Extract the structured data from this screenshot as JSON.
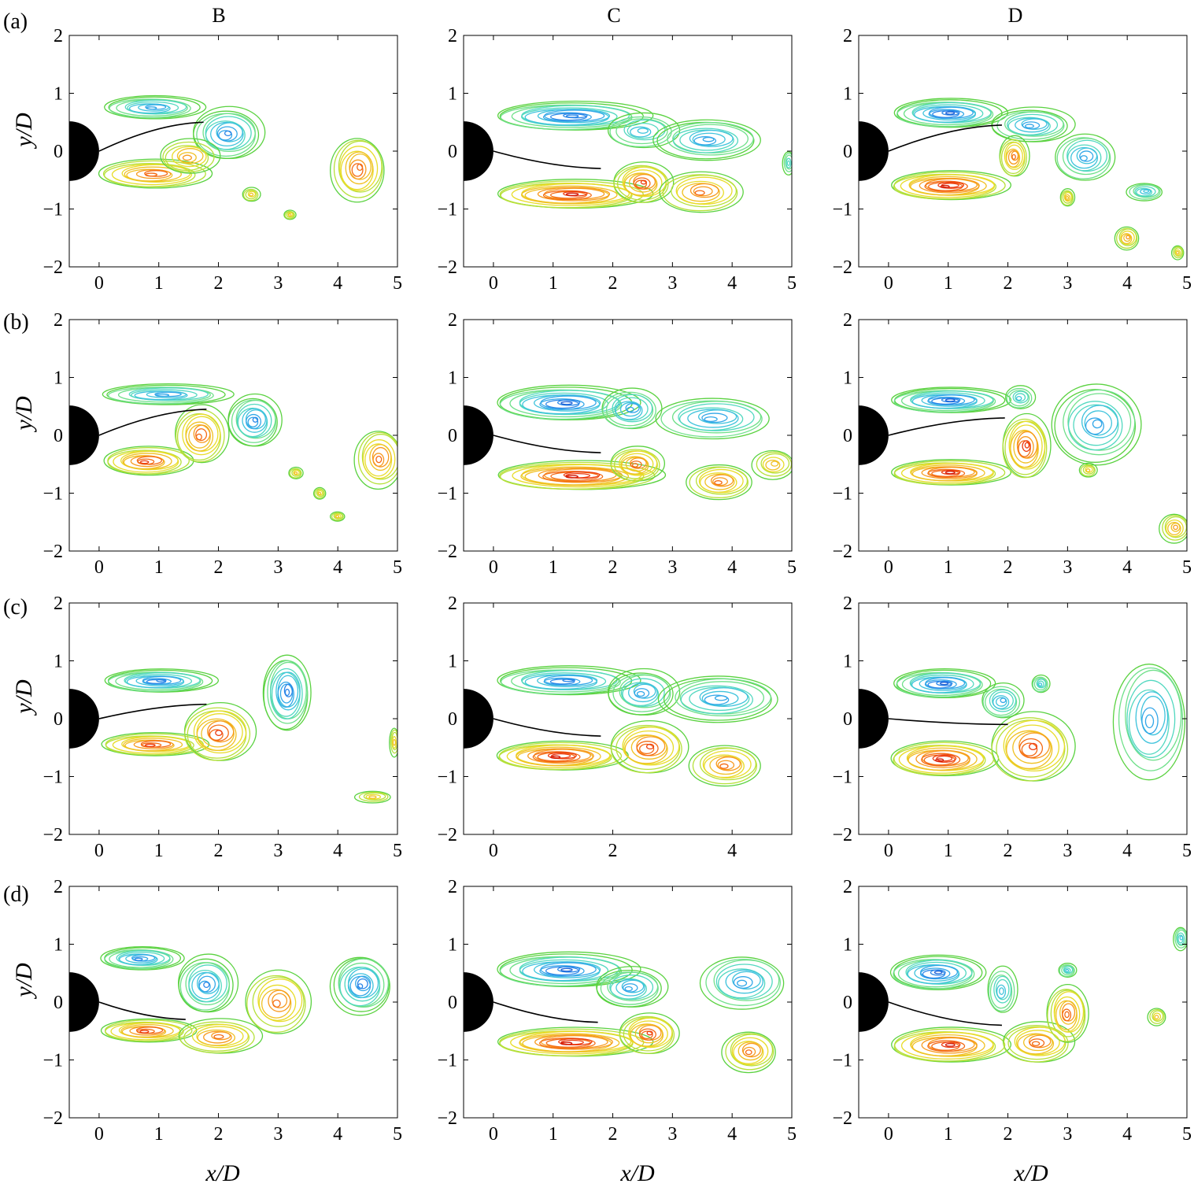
{
  "figure": {
    "column_titles": [
      "B",
      "C",
      "D"
    ],
    "row_labels": [
      "(a)",
      "(b)",
      "(c)",
      "(d)"
    ],
    "x_axis_label": "x/D",
    "y_axis_label": "y/D"
  },
  "colors": {
    "negative_vorticity": [
      "#1b5fd6",
      "#2a86e8",
      "#33a7e8",
      "#3fc3dc",
      "#52d8c0",
      "#6fe08a",
      "#5ad240"
    ],
    "positive_vorticity": [
      "#d21a0c",
      "#ec3b10",
      "#f46a14",
      "#f79a1e",
      "#f0c023",
      "#e8dc2a",
      "#b6e03a",
      "#5ad240"
    ],
    "body": "#000000"
  },
  "chart_data": [
    {
      "type": "contour",
      "panel": "(a)",
      "column": "B",
      "xlim": [
        -0.5,
        5
      ],
      "ylim": [
        -2,
        2
      ],
      "x_ticks": [
        0,
        1,
        2,
        3,
        4,
        5
      ],
      "y_ticks": [
        -2,
        -1,
        0,
        1,
        2
      ],
      "plate_tip": [
        1.75,
        0.5
      ],
      "regions": [
        {
          "sign": "negative",
          "cx": 0.9,
          "cy": 0.75,
          "rx": 0.85,
          "ry": 0.2,
          "peak": 0.6
        },
        {
          "sign": "negative",
          "cx": 2.15,
          "cy": 0.3,
          "rx": 0.6,
          "ry": 0.45,
          "peak": 0.7
        },
        {
          "sign": "positive",
          "cx": 0.9,
          "cy": -0.4,
          "rx": 0.95,
          "ry": 0.25,
          "peak": 0.6
        },
        {
          "sign": "positive",
          "cx": 1.5,
          "cy": -0.1,
          "rx": 0.5,
          "ry": 0.3,
          "peak": 0.3
        },
        {
          "sign": "positive",
          "cx": 4.35,
          "cy": -0.3,
          "rx": 0.45,
          "ry": 0.55,
          "peak": 0.6
        },
        {
          "sign": "positive",
          "cx": 2.55,
          "cy": -0.75,
          "rx": 0.15,
          "ry": 0.12,
          "peak": 0.1
        },
        {
          "sign": "positive",
          "cx": 3.2,
          "cy": -1.1,
          "rx": 0.1,
          "ry": 0.08,
          "peak": 0.1
        }
      ]
    },
    {
      "type": "contour",
      "panel": "(a)",
      "column": "C",
      "xlim": [
        -0.5,
        5
      ],
      "ylim": [
        -2,
        2
      ],
      "x_ticks": [
        0,
        1,
        2,
        3,
        4,
        5
      ],
      "y_ticks": [
        -2,
        -1,
        0,
        1,
        2
      ],
      "plate_tip": [
        1.8,
        -0.3
      ],
      "regions": [
        {
          "sign": "negative",
          "cx": 1.3,
          "cy": 0.6,
          "rx": 1.3,
          "ry": 0.25,
          "peak": 0.85
        },
        {
          "sign": "negative",
          "cx": 2.5,
          "cy": 0.35,
          "rx": 0.6,
          "ry": 0.3,
          "peak": 0.3
        },
        {
          "sign": "negative",
          "cx": 3.6,
          "cy": 0.2,
          "rx": 0.9,
          "ry": 0.35,
          "peak": 0.6
        },
        {
          "sign": "positive",
          "cx": 1.3,
          "cy": -0.75,
          "rx": 1.3,
          "ry": 0.25,
          "peak": 0.9
        },
        {
          "sign": "positive",
          "cx": 2.5,
          "cy": -0.55,
          "rx": 0.5,
          "ry": 0.35,
          "peak": 0.7
        },
        {
          "sign": "positive",
          "cx": 3.5,
          "cy": -0.7,
          "rx": 0.7,
          "ry": 0.35,
          "peak": 0.5
        },
        {
          "sign": "negative",
          "cx": 4.95,
          "cy": -0.2,
          "rx": 0.1,
          "ry": 0.2,
          "peak": 0.1
        }
      ]
    },
    {
      "type": "contour",
      "panel": "(a)",
      "column": "D",
      "xlim": [
        -0.5,
        5
      ],
      "ylim": [
        -2,
        2
      ],
      "x_ticks": [
        0,
        1,
        2,
        3,
        4,
        5
      ],
      "y_ticks": [
        -2,
        -1,
        0,
        1,
        2
      ],
      "plate_tip": [
        1.9,
        0.45
      ],
      "regions": [
        {
          "sign": "negative",
          "cx": 1.0,
          "cy": 0.65,
          "rx": 0.95,
          "ry": 0.25,
          "peak": 0.9
        },
        {
          "sign": "negative",
          "cx": 2.4,
          "cy": 0.45,
          "rx": 0.7,
          "ry": 0.3,
          "peak": 0.6
        },
        {
          "sign": "negative",
          "cx": 3.3,
          "cy": -0.1,
          "rx": 0.5,
          "ry": 0.4,
          "peak": 0.5
        },
        {
          "sign": "negative",
          "cx": 4.3,
          "cy": -0.7,
          "rx": 0.3,
          "ry": 0.15,
          "peak": 0.3
        },
        {
          "sign": "positive",
          "cx": 1.0,
          "cy": -0.6,
          "rx": 1.0,
          "ry": 0.25,
          "peak": 1.0
        },
        {
          "sign": "positive",
          "cx": 2.1,
          "cy": -0.1,
          "rx": 0.25,
          "ry": 0.35,
          "peak": 0.5
        },
        {
          "sign": "positive",
          "cx": 3.0,
          "cy": -0.8,
          "rx": 0.12,
          "ry": 0.15,
          "peak": 0.2
        },
        {
          "sign": "positive",
          "cx": 4.0,
          "cy": -1.5,
          "rx": 0.2,
          "ry": 0.2,
          "peak": 0.3
        },
        {
          "sign": "positive",
          "cx": 4.85,
          "cy": -1.75,
          "rx": 0.1,
          "ry": 0.12,
          "peak": 0.1
        }
      ]
    },
    {
      "type": "contour",
      "panel": "(b)",
      "column": "B",
      "xlim": [
        -0.5,
        5
      ],
      "ylim": [
        -2,
        2
      ],
      "x_ticks": [
        0,
        1,
        2,
        3,
        4,
        5
      ],
      "y_ticks": [
        -2,
        -1,
        0,
        1,
        2
      ],
      "plate_tip": [
        1.8,
        0.45
      ],
      "regions": [
        {
          "sign": "negative",
          "cx": 1.1,
          "cy": 0.7,
          "rx": 1.1,
          "ry": 0.18,
          "peak": 0.6
        },
        {
          "sign": "negative",
          "cx": 2.6,
          "cy": 0.25,
          "rx": 0.45,
          "ry": 0.45,
          "peak": 0.7
        },
        {
          "sign": "positive",
          "cx": 0.8,
          "cy": -0.45,
          "rx": 0.75,
          "ry": 0.25,
          "peak": 0.7
        },
        {
          "sign": "positive",
          "cx": 1.7,
          "cy": 0.0,
          "rx": 0.45,
          "ry": 0.5,
          "peak": 0.6
        },
        {
          "sign": "positive",
          "cx": 4.7,
          "cy": -0.4,
          "rx": 0.4,
          "ry": 0.5,
          "peak": 0.5
        },
        {
          "sign": "positive",
          "cx": 3.3,
          "cy": -0.65,
          "rx": 0.12,
          "ry": 0.1,
          "peak": 0.1
        },
        {
          "sign": "positive",
          "cx": 3.7,
          "cy": -1.0,
          "rx": 0.1,
          "ry": 0.1,
          "peak": 0.1
        },
        {
          "sign": "positive",
          "cx": 4.0,
          "cy": -1.4,
          "rx": 0.12,
          "ry": 0.08,
          "peak": 0.1
        }
      ]
    },
    {
      "type": "contour",
      "panel": "(b)",
      "column": "C",
      "xlim": [
        -0.5,
        5
      ],
      "ylim": [
        -2,
        2
      ],
      "x_ticks": [
        0,
        1,
        2,
        3,
        4,
        5
      ],
      "y_ticks": [
        -2,
        -1,
        0,
        1,
        2
      ],
      "plate_tip": [
        1.8,
        -0.3
      ],
      "regions": [
        {
          "sign": "negative",
          "cx": 1.2,
          "cy": 0.55,
          "rx": 1.2,
          "ry": 0.3,
          "peak": 0.9
        },
        {
          "sign": "negative",
          "cx": 2.3,
          "cy": 0.45,
          "rx": 0.5,
          "ry": 0.35,
          "peak": 0.5
        },
        {
          "sign": "negative",
          "cx": 3.7,
          "cy": 0.3,
          "rx": 0.95,
          "ry": 0.35,
          "peak": 0.5
        },
        {
          "sign": "positive",
          "cx": 1.4,
          "cy": -0.7,
          "rx": 1.4,
          "ry": 0.25,
          "peak": 1.0
        },
        {
          "sign": "positive",
          "cx": 2.4,
          "cy": -0.5,
          "rx": 0.45,
          "ry": 0.3,
          "peak": 0.6
        },
        {
          "sign": "positive",
          "cx": 3.8,
          "cy": -0.8,
          "rx": 0.55,
          "ry": 0.3,
          "peak": 0.5
        },
        {
          "sign": "positive",
          "cx": 4.7,
          "cy": -0.5,
          "rx": 0.35,
          "ry": 0.25,
          "peak": 0.2
        }
      ]
    },
    {
      "type": "contour",
      "panel": "(b)",
      "column": "D",
      "xlim": [
        -0.5,
        5
      ],
      "ylim": [
        -2,
        2
      ],
      "x_ticks": [
        0,
        1,
        2,
        3,
        4,
        5
      ],
      "y_ticks": [
        -2,
        -1,
        0,
        1,
        2
      ],
      "plate_tip": [
        1.95,
        0.3
      ],
      "regions": [
        {
          "sign": "negative",
          "cx": 1.0,
          "cy": 0.6,
          "rx": 1.0,
          "ry": 0.22,
          "peak": 0.9
        },
        {
          "sign": "negative",
          "cx": 2.2,
          "cy": 0.65,
          "rx": 0.25,
          "ry": 0.2,
          "peak": 0.2
        },
        {
          "sign": "negative",
          "cx": 3.5,
          "cy": 0.2,
          "rx": 0.75,
          "ry": 0.7,
          "peak": 0.6
        },
        {
          "sign": "positive",
          "cx": 1.0,
          "cy": -0.65,
          "rx": 1.0,
          "ry": 0.22,
          "peak": 0.9
        },
        {
          "sign": "positive",
          "cx": 2.3,
          "cy": -0.2,
          "rx": 0.4,
          "ry": 0.55,
          "peak": 0.8
        },
        {
          "sign": "positive",
          "cx": 3.35,
          "cy": -0.6,
          "rx": 0.15,
          "ry": 0.12,
          "peak": 0.1
        },
        {
          "sign": "positive",
          "cx": 4.8,
          "cy": -1.6,
          "rx": 0.25,
          "ry": 0.25,
          "peak": 0.3
        }
      ]
    },
    {
      "type": "contour",
      "panel": "(c)",
      "column": "B",
      "xlim": [
        -0.5,
        5
      ],
      "ylim": [
        -2,
        2
      ],
      "x_ticks": [
        0,
        1,
        2,
        3,
        4,
        5
      ],
      "y_ticks": [
        -2,
        -1,
        0,
        1,
        2
      ],
      "plate_tip": [
        1.8,
        0.25
      ],
      "regions": [
        {
          "sign": "negative",
          "cx": 1.0,
          "cy": 0.65,
          "rx": 0.95,
          "ry": 0.2,
          "peak": 0.8
        },
        {
          "sign": "negative",
          "cx": 3.15,
          "cy": 0.45,
          "rx": 0.4,
          "ry": 0.65,
          "peak": 0.8
        },
        {
          "sign": "positive",
          "cx": 0.9,
          "cy": -0.45,
          "rx": 0.9,
          "ry": 0.2,
          "peak": 0.7
        },
        {
          "sign": "positive",
          "cx": 2.0,
          "cy": -0.25,
          "rx": 0.6,
          "ry": 0.5,
          "peak": 0.7
        },
        {
          "sign": "positive",
          "cx": 4.6,
          "cy": -1.35,
          "rx": 0.3,
          "ry": 0.1,
          "peak": 0.1
        },
        {
          "sign": "positive",
          "cx": 4.95,
          "cy": -0.4,
          "rx": 0.08,
          "ry": 0.25,
          "peak": 0.1
        }
      ]
    },
    {
      "type": "contour",
      "panel": "(c)",
      "column": "C",
      "xlim": [
        -0.5,
        5
      ],
      "ylim": [
        -2,
        2
      ],
      "x_ticks": [
        0,
        2,
        4
      ],
      "y_ticks": [
        -2,
        -1,
        0,
        1,
        2
      ],
      "plate_tip": [
        1.8,
        -0.3
      ],
      "regions": [
        {
          "sign": "negative",
          "cx": 1.2,
          "cy": 0.65,
          "rx": 1.2,
          "ry": 0.25,
          "peak": 0.8
        },
        {
          "sign": "negative",
          "cx": 2.5,
          "cy": 0.45,
          "rx": 0.6,
          "ry": 0.4,
          "peak": 0.6
        },
        {
          "sign": "negative",
          "cx": 3.8,
          "cy": 0.35,
          "rx": 1.0,
          "ry": 0.4,
          "peak": 0.6
        },
        {
          "sign": "positive",
          "cx": 1.1,
          "cy": -0.65,
          "rx": 1.1,
          "ry": 0.25,
          "peak": 1.0
        },
        {
          "sign": "positive",
          "cx": 2.6,
          "cy": -0.5,
          "rx": 0.65,
          "ry": 0.45,
          "peak": 0.7
        },
        {
          "sign": "positive",
          "cx": 3.9,
          "cy": -0.8,
          "rx": 0.6,
          "ry": 0.35,
          "peak": 0.5
        }
      ]
    },
    {
      "type": "contour",
      "panel": "(c)",
      "column": "D",
      "xlim": [
        -0.5,
        5
      ],
      "ylim": [
        -2,
        2
      ],
      "x_ticks": [
        0,
        1,
        2,
        3,
        4,
        5
      ],
      "y_ticks": [
        -2,
        -1,
        0,
        1,
        2
      ],
      "plate_tip": [
        2.0,
        -0.1
      ],
      "regions": [
        {
          "sign": "negative",
          "cx": 0.9,
          "cy": 0.6,
          "rx": 0.85,
          "ry": 0.25,
          "peak": 0.9
        },
        {
          "sign": "negative",
          "cx": 1.9,
          "cy": 0.3,
          "rx": 0.35,
          "ry": 0.3,
          "peak": 0.4
        },
        {
          "sign": "negative",
          "cx": 2.55,
          "cy": 0.6,
          "rx": 0.15,
          "ry": 0.15,
          "peak": 0.2
        },
        {
          "sign": "negative",
          "cx": 4.4,
          "cy": 0.0,
          "rx": 0.6,
          "ry": 1.0,
          "peak": 0.5
        },
        {
          "sign": "positive",
          "cx": 0.9,
          "cy": -0.7,
          "rx": 0.9,
          "ry": 0.3,
          "peak": 1.0
        },
        {
          "sign": "positive",
          "cx": 2.4,
          "cy": -0.5,
          "rx": 0.7,
          "ry": 0.6,
          "peak": 0.7
        }
      ]
    },
    {
      "type": "contour",
      "panel": "(d)",
      "column": "B",
      "xlim": [
        -0.5,
        5
      ],
      "ylim": [
        -2,
        2
      ],
      "x_ticks": [
        0,
        1,
        2,
        3,
        4,
        5
      ],
      "y_ticks": [
        -2,
        -1,
        0,
        1,
        2
      ],
      "plate_tip": [
        1.45,
        -0.3
      ],
      "regions": [
        {
          "sign": "negative",
          "cx": 0.7,
          "cy": 0.75,
          "rx": 0.7,
          "ry": 0.2,
          "peak": 0.7
        },
        {
          "sign": "negative",
          "cx": 1.8,
          "cy": 0.3,
          "rx": 0.5,
          "ry": 0.5,
          "peak": 0.7
        },
        {
          "sign": "negative",
          "cx": 4.4,
          "cy": 0.3,
          "rx": 0.5,
          "ry": 0.5,
          "peak": 0.8
        },
        {
          "sign": "positive",
          "cx": 0.8,
          "cy": -0.5,
          "rx": 0.8,
          "ry": 0.2,
          "peak": 0.7
        },
        {
          "sign": "positive",
          "cx": 2.0,
          "cy": -0.6,
          "rx": 0.7,
          "ry": 0.3,
          "peak": 0.5
        },
        {
          "sign": "positive",
          "cx": 3.0,
          "cy": 0.0,
          "rx": 0.55,
          "ry": 0.55,
          "peak": 0.5
        }
      ]
    },
    {
      "type": "contour",
      "panel": "(d)",
      "column": "C",
      "xlim": [
        -0.5,
        5
      ],
      "ylim": [
        -2,
        2
      ],
      "x_ticks": [
        0,
        1,
        2,
        3,
        4,
        5
      ],
      "y_ticks": [
        -2,
        -1,
        0,
        1,
        2
      ],
      "plate_tip": [
        1.75,
        -0.35
      ],
      "regions": [
        {
          "sign": "negative",
          "cx": 1.2,
          "cy": 0.55,
          "rx": 1.2,
          "ry": 0.3,
          "peak": 0.9
        },
        {
          "sign": "negative",
          "cx": 2.3,
          "cy": 0.25,
          "rx": 0.6,
          "ry": 0.35,
          "peak": 0.6
        },
        {
          "sign": "negative",
          "cx": 4.2,
          "cy": 0.35,
          "rx": 0.7,
          "ry": 0.45,
          "peak": 0.5
        },
        {
          "sign": "positive",
          "cx": 1.3,
          "cy": -0.7,
          "rx": 1.3,
          "ry": 0.25,
          "peak": 1.0
        },
        {
          "sign": "positive",
          "cx": 2.6,
          "cy": -0.55,
          "rx": 0.5,
          "ry": 0.35,
          "peak": 0.7
        },
        {
          "sign": "positive",
          "cx": 4.3,
          "cy": -0.85,
          "rx": 0.45,
          "ry": 0.35,
          "peak": 0.5
        }
      ]
    },
    {
      "type": "contour",
      "panel": "(d)",
      "column": "D",
      "xlim": [
        -0.5,
        5
      ],
      "ylim": [
        -2,
        2
      ],
      "x_ticks": [
        0,
        1,
        2,
        3,
        4,
        5
      ],
      "y_ticks": [
        -2,
        -1,
        0,
        1,
        2
      ],
      "plate_tip": [
        1.9,
        -0.4
      ],
      "regions": [
        {
          "sign": "negative",
          "cx": 0.8,
          "cy": 0.5,
          "rx": 0.8,
          "ry": 0.3,
          "peak": 0.9
        },
        {
          "sign": "negative",
          "cx": 1.9,
          "cy": 0.2,
          "rx": 0.25,
          "ry": 0.4,
          "peak": 0.3
        },
        {
          "sign": "negative",
          "cx": 3.0,
          "cy": 0.55,
          "rx": 0.15,
          "ry": 0.12,
          "peak": 0.2
        },
        {
          "sign": "negative",
          "cx": 4.9,
          "cy": 1.1,
          "rx": 0.12,
          "ry": 0.2,
          "peak": 0.2
        },
        {
          "sign": "positive",
          "cx": 1.0,
          "cy": -0.75,
          "rx": 1.0,
          "ry": 0.3,
          "peak": 0.9
        },
        {
          "sign": "positive",
          "cx": 2.5,
          "cy": -0.7,
          "rx": 0.6,
          "ry": 0.35,
          "peak": 0.6
        },
        {
          "sign": "positive",
          "cx": 3.0,
          "cy": -0.2,
          "rx": 0.35,
          "ry": 0.5,
          "peak": 0.6
        },
        {
          "sign": "positive",
          "cx": 4.5,
          "cy": -0.25,
          "rx": 0.15,
          "ry": 0.15,
          "peak": 0.1
        }
      ]
    }
  ]
}
